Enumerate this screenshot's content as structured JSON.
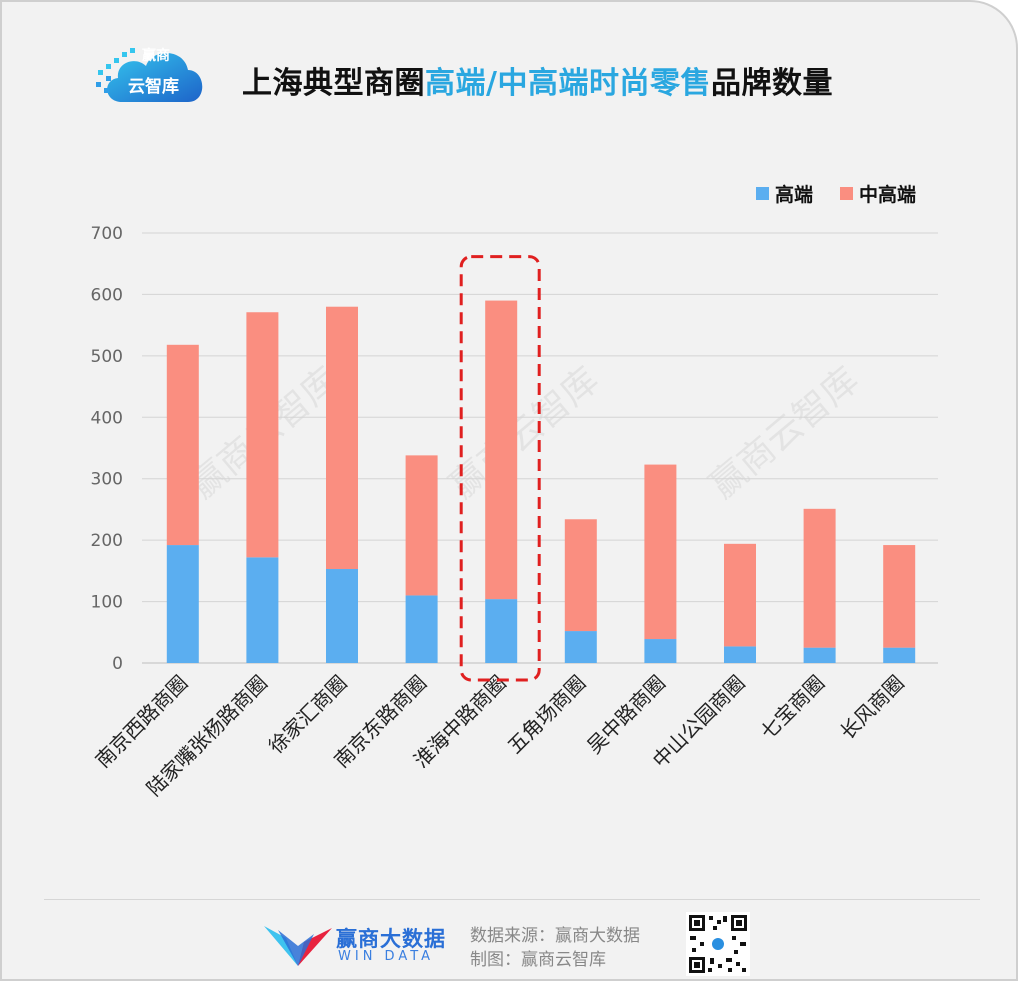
{
  "header": {
    "logo_line1": "赢商",
    "logo_line2": "云智库",
    "title_parts": [
      "上海典型商圈",
      "高端/中高端时尚零售",
      "品牌数量"
    ]
  },
  "colors": {
    "high_end": "#5baef0",
    "mid_high_end": "#fa8e80",
    "highlight": "#e02020",
    "title_accent": "#2aa7e0"
  },
  "chart_data": {
    "type": "bar",
    "stacked": true,
    "categories": [
      "南京西路商圈",
      "陆家嘴张杨路商圈",
      "徐家汇商圈",
      "南京东路商圈",
      "淮海中路商圈",
      "五角场商圈",
      "吴中路商圈",
      "中山公园商圈",
      "七宝商圈",
      "长风商圈"
    ],
    "series": [
      {
        "name": "高端",
        "values": [
          192,
          172,
          153,
          110,
          104,
          52,
          39,
          27,
          25,
          25
        ]
      },
      {
        "name": "中高端",
        "values": [
          326,
          399,
          427,
          228,
          486,
          182,
          284,
          167,
          226,
          167
        ]
      }
    ],
    "ylim": [
      0,
      700
    ],
    "yticks": [
      "0",
      "100",
      "200",
      "300",
      "400",
      "500",
      "600",
      "700"
    ],
    "grid": true,
    "legend_position": "top-right",
    "highlighted_category": "淮海中路商圈"
  },
  "legend": {
    "high_end": "高端",
    "mid_high_end": "中高端"
  },
  "watermark": "赢商云智库",
  "footer": {
    "brand_name": "赢商大数据",
    "brand_en": "WIN DATA",
    "source_line": "数据来源：赢商大数据",
    "made_by_line": "制图：赢商云智库"
  }
}
